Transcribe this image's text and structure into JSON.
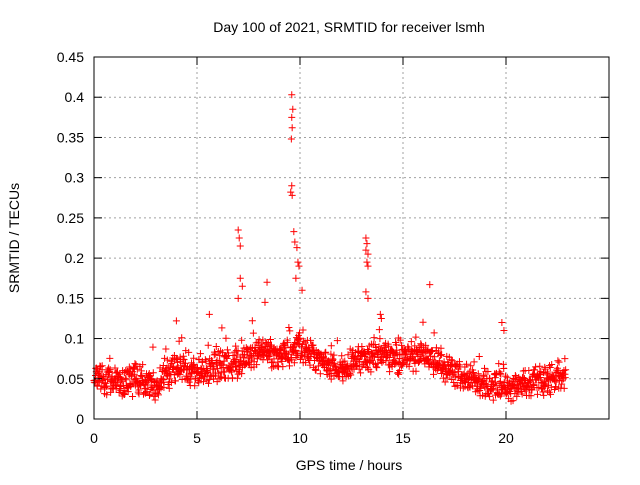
{
  "chart_data": {
    "type": "scatter",
    "title": "Day 100 of 2021, SRMTID for receiver lsmh",
    "xlabel": "GPS time / hours",
    "ylabel": "SRMTID / TECUs",
    "xlim": [
      0,
      25
    ],
    "ylim": [
      0,
      0.45
    ],
    "xticks": [
      0,
      5,
      10,
      15,
      20
    ],
    "xtick_labels": [
      "0",
      "5",
      "10",
      "15",
      "20"
    ],
    "yticks": [
      0,
      0.05,
      0.1,
      0.15,
      0.2,
      0.25,
      0.3,
      0.35,
      0.4,
      0.45
    ],
    "ytick_labels": [
      "0",
      "0.05",
      "0.1",
      "0.15",
      "0.2",
      "0.25",
      "0.3",
      "0.35",
      "0.4",
      "0.45"
    ],
    "grid": true,
    "marker": "+",
    "series_color": "#ff0000",
    "baseline_profile": {
      "x": [
        0,
        1,
        2,
        3,
        4,
        5,
        6,
        7,
        8,
        9,
        10,
        11,
        12,
        13,
        14,
        15,
        16,
        17,
        18,
        19,
        20,
        21,
        22,
        22.8
      ],
      "y": [
        0.055,
        0.045,
        0.05,
        0.04,
        0.065,
        0.06,
        0.065,
        0.07,
        0.085,
        0.08,
        0.09,
        0.07,
        0.06,
        0.075,
        0.08,
        0.075,
        0.08,
        0.065,
        0.05,
        0.045,
        0.04,
        0.045,
        0.05,
        0.055
      ]
    },
    "highlight_points": [
      {
        "x": 7.0,
        "y": 0.235
      },
      {
        "x": 7.05,
        "y": 0.225
      },
      {
        "x": 7.1,
        "y": 0.215
      },
      {
        "x": 7.1,
        "y": 0.175
      },
      {
        "x": 7.2,
        "y": 0.165
      },
      {
        "x": 7.0,
        "y": 0.15
      },
      {
        "x": 8.4,
        "y": 0.17
      },
      {
        "x": 8.3,
        "y": 0.145
      },
      {
        "x": 9.6,
        "y": 0.403
      },
      {
        "x": 9.65,
        "y": 0.385
      },
      {
        "x": 9.6,
        "y": 0.375
      },
      {
        "x": 9.62,
        "y": 0.362
      },
      {
        "x": 9.58,
        "y": 0.348
      },
      {
        "x": 9.6,
        "y": 0.29
      },
      {
        "x": 9.55,
        "y": 0.282
      },
      {
        "x": 9.62,
        "y": 0.278
      },
      {
        "x": 9.7,
        "y": 0.233
      },
      {
        "x": 9.75,
        "y": 0.22
      },
      {
        "x": 9.85,
        "y": 0.213
      },
      {
        "x": 9.9,
        "y": 0.195
      },
      {
        "x": 9.95,
        "y": 0.19
      },
      {
        "x": 9.8,
        "y": 0.175
      },
      {
        "x": 10.1,
        "y": 0.16
      },
      {
        "x": 13.2,
        "y": 0.225
      },
      {
        "x": 13.25,
        "y": 0.218
      },
      {
        "x": 13.2,
        "y": 0.21
      },
      {
        "x": 13.3,
        "y": 0.205
      },
      {
        "x": 13.25,
        "y": 0.195
      },
      {
        "x": 13.3,
        "y": 0.19
      },
      {
        "x": 13.2,
        "y": 0.158
      },
      {
        "x": 13.3,
        "y": 0.15
      },
      {
        "x": 13.9,
        "y": 0.13
      },
      {
        "x": 13.95,
        "y": 0.125
      },
      {
        "x": 16.3,
        "y": 0.167
      },
      {
        "x": 19.8,
        "y": 0.12
      },
      {
        "x": 19.9,
        "y": 0.11
      },
      {
        "x": 4.0,
        "y": 0.122
      },
      {
        "x": 5.6,
        "y": 0.13
      }
    ],
    "dense_series": {
      "x_start": 0,
      "x_end": 22.9,
      "count": 1400,
      "noise_amplitude": 0.022,
      "seed": 7
    }
  }
}
